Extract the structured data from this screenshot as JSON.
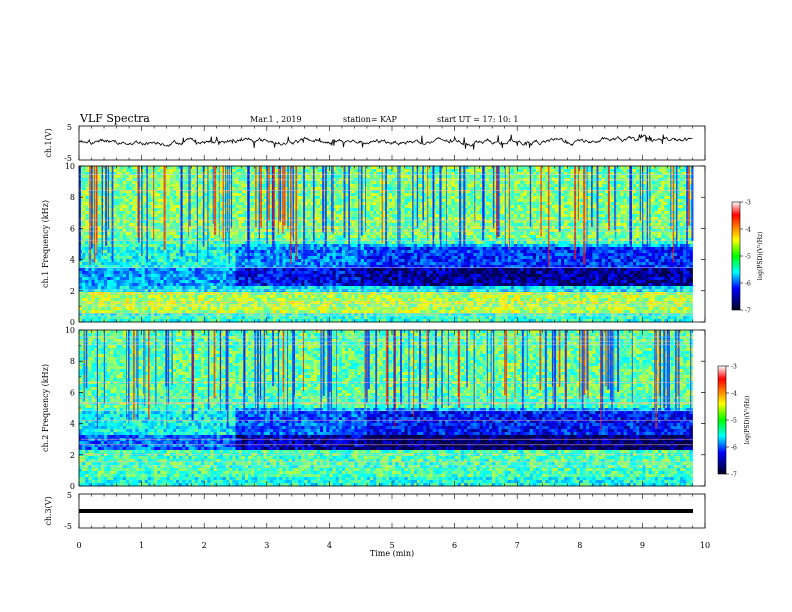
{
  "header": {
    "title": "VLF Spectra",
    "date": "Mar.1 , 2019",
    "station": "station= KAP",
    "start": "start UT = 17: 10: 1"
  },
  "chart_data": [
    {
      "panel": "ch1_waveform",
      "type": "line",
      "ylabel": "ch.1(V)",
      "ylim": [
        -5,
        5
      ],
      "yticks": [
        "5",
        "-5"
      ],
      "xlim": [
        0,
        10
      ],
      "approx_mean_V": 0.5,
      "approx_range_V": [
        -2.5,
        2.5
      ]
    },
    {
      "panel": "ch1_spectrogram",
      "type": "heatmap",
      "ylabel": "ch.1 Frequency (kHz)",
      "ylim": [
        0,
        10
      ],
      "yticks": [
        "0",
        "2",
        "4",
        "6",
        "8",
        "10"
      ],
      "xlim": [
        0,
        10
      ],
      "colorbar": {
        "label": "log(PSD)(V²/Hz)",
        "range": [
          -7,
          -3
        ],
        "ticks": [
          "-3",
          "-4",
          "-5",
          "-6",
          "-7"
        ]
      },
      "data_end_min": 9.8,
      "bands_kHz": [
        {
          "from": 0,
          "to": 0.6,
          "level": -5.3
        },
        {
          "from": 0.6,
          "to": 2.0,
          "level": -4.8
        },
        {
          "from": 2.0,
          "to": 2.4,
          "level": -5.6
        },
        {
          "from": 2.4,
          "to": 3.4,
          "level": -5.9
        },
        {
          "from": 3.4,
          "to": 4.8,
          "level": -5.4
        },
        {
          "from": 4.8,
          "to": 5.4,
          "level": -5.2
        },
        {
          "from": 5.4,
          "to": 10.0,
          "level": -5.0
        }
      ]
    },
    {
      "panel": "ch2_spectrogram",
      "type": "heatmap",
      "ylabel": "ch.2 Frequency (kHz)",
      "ylim": [
        0,
        10
      ],
      "yticks": [
        "0",
        "2",
        "4",
        "6",
        "8",
        "10"
      ],
      "xlim": [
        0,
        10
      ],
      "colorbar": {
        "label": "log(PSD)(V²/Hz)",
        "range": [
          -7,
          -3
        ],
        "ticks": [
          "-3",
          "-4",
          "-5",
          "-6",
          "-7"
        ]
      },
      "data_end_min": 9.8,
      "bands_kHz": [
        {
          "from": 0,
          "to": 0.6,
          "level": -5.4
        },
        {
          "from": 0.6,
          "to": 2.4,
          "level": -5.2
        },
        {
          "from": 2.4,
          "to": 3.2,
          "level": -6.1
        },
        {
          "from": 3.2,
          "to": 4.8,
          "level": -5.5
        },
        {
          "from": 4.8,
          "to": 5.8,
          "level": -5.2
        },
        {
          "from": 5.8,
          "to": 10.0,
          "level": -5.1
        }
      ]
    },
    {
      "panel": "ch3_waveform",
      "type": "line",
      "ylabel": "ch.3(V)",
      "ylim": [
        -5,
        5
      ],
      "yticks": [
        "5",
        "-5"
      ],
      "xlim": [
        0,
        10
      ],
      "constant_V": 0,
      "xlabel": "Time (min)",
      "xticks": [
        "0",
        "1",
        "2",
        "3",
        "4",
        "5",
        "6",
        "7",
        "8",
        "9",
        "10"
      ]
    }
  ]
}
